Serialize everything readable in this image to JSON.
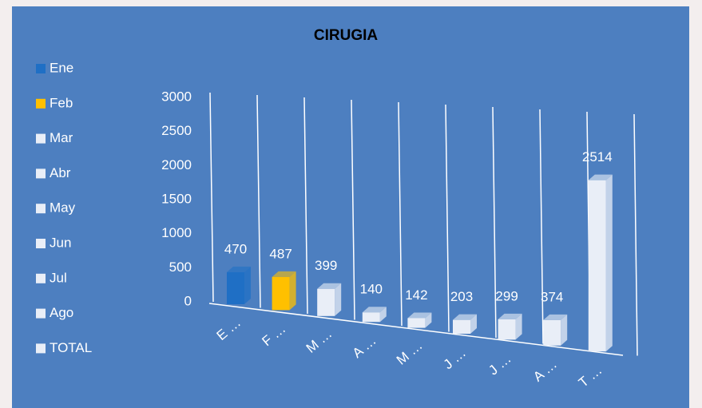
{
  "chart_data": {
    "type": "bar3d",
    "title": "CIRUGIA",
    "categories": [
      "E …",
      "F …",
      "M …",
      "A …",
      "M …",
      "J …",
      "J …",
      "A …",
      "T …"
    ],
    "legend": [
      "Ene",
      "Feb",
      "Mar",
      "Abr",
      "May",
      "Jun",
      "Jul",
      "Ago",
      "TOTAL"
    ],
    "colors": [
      "#1f6fc5",
      "#ffc000",
      "#e9eef7",
      "#e9eef7",
      "#e9eef7",
      "#e9eef7",
      "#e9eef7",
      "#e9eef7",
      "#e9eef7"
    ],
    "values": [
      470,
      487,
      399,
      140,
      142,
      203,
      299,
      374,
      2514
    ],
    "ylim": [
      0,
      3000
    ],
    "yticks": [
      0,
      500,
      1000,
      1500,
      2000,
      2500,
      3000
    ]
  }
}
